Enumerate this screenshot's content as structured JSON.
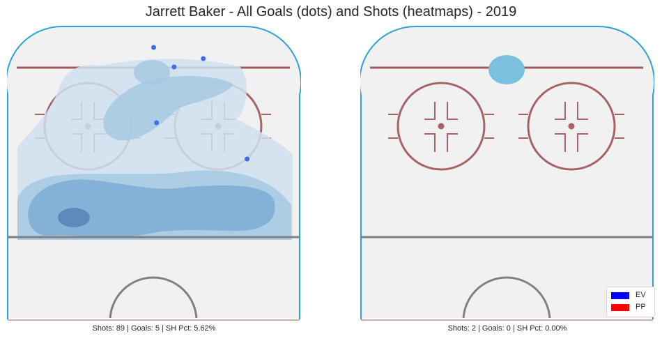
{
  "title": "Jarrett Baker - All Goals (dots) and Shots (heatmaps) - 2019",
  "legend": {
    "items": [
      {
        "label": "EV",
        "color": "#0000ff"
      },
      {
        "label": "PP",
        "color": "#ff0000"
      }
    ]
  },
  "colors": {
    "rink_background": "#f1f1f1",
    "boards": "#2ea3d3",
    "goal_line": "#9b5a5e",
    "faceoff": "#a66366",
    "blue_line": "#808080",
    "center_circle": "#808080",
    "heat_levels": [
      "#cfe0ee",
      "#a6c9e2",
      "#7eaed6",
      "#5b88b8"
    ],
    "goal_dot": "#3f6df0"
  },
  "chart_data": [
    {
      "type": "heatmap",
      "panel": "left",
      "caption": "Shots: 89 | Goals: 5 | SH Pct: 5.62%",
      "shots": 89,
      "goals": 5,
      "sh_pct": "5.62%",
      "goal_dots": [
        {
          "x": 50,
          "y": 93
        },
        {
          "x": 57,
          "y": 86
        },
        {
          "x": 67,
          "y": 89
        },
        {
          "x": 51,
          "y": 66
        },
        {
          "x": 82,
          "y": 53
        }
      ]
    },
    {
      "type": "heatmap",
      "panel": "right",
      "caption": "Shots: 2 | Goals: 0 | SH Pct: 0.00%",
      "shots": 2,
      "goals": 0,
      "sh_pct": "0.00%",
      "goal_dots": []
    }
  ]
}
